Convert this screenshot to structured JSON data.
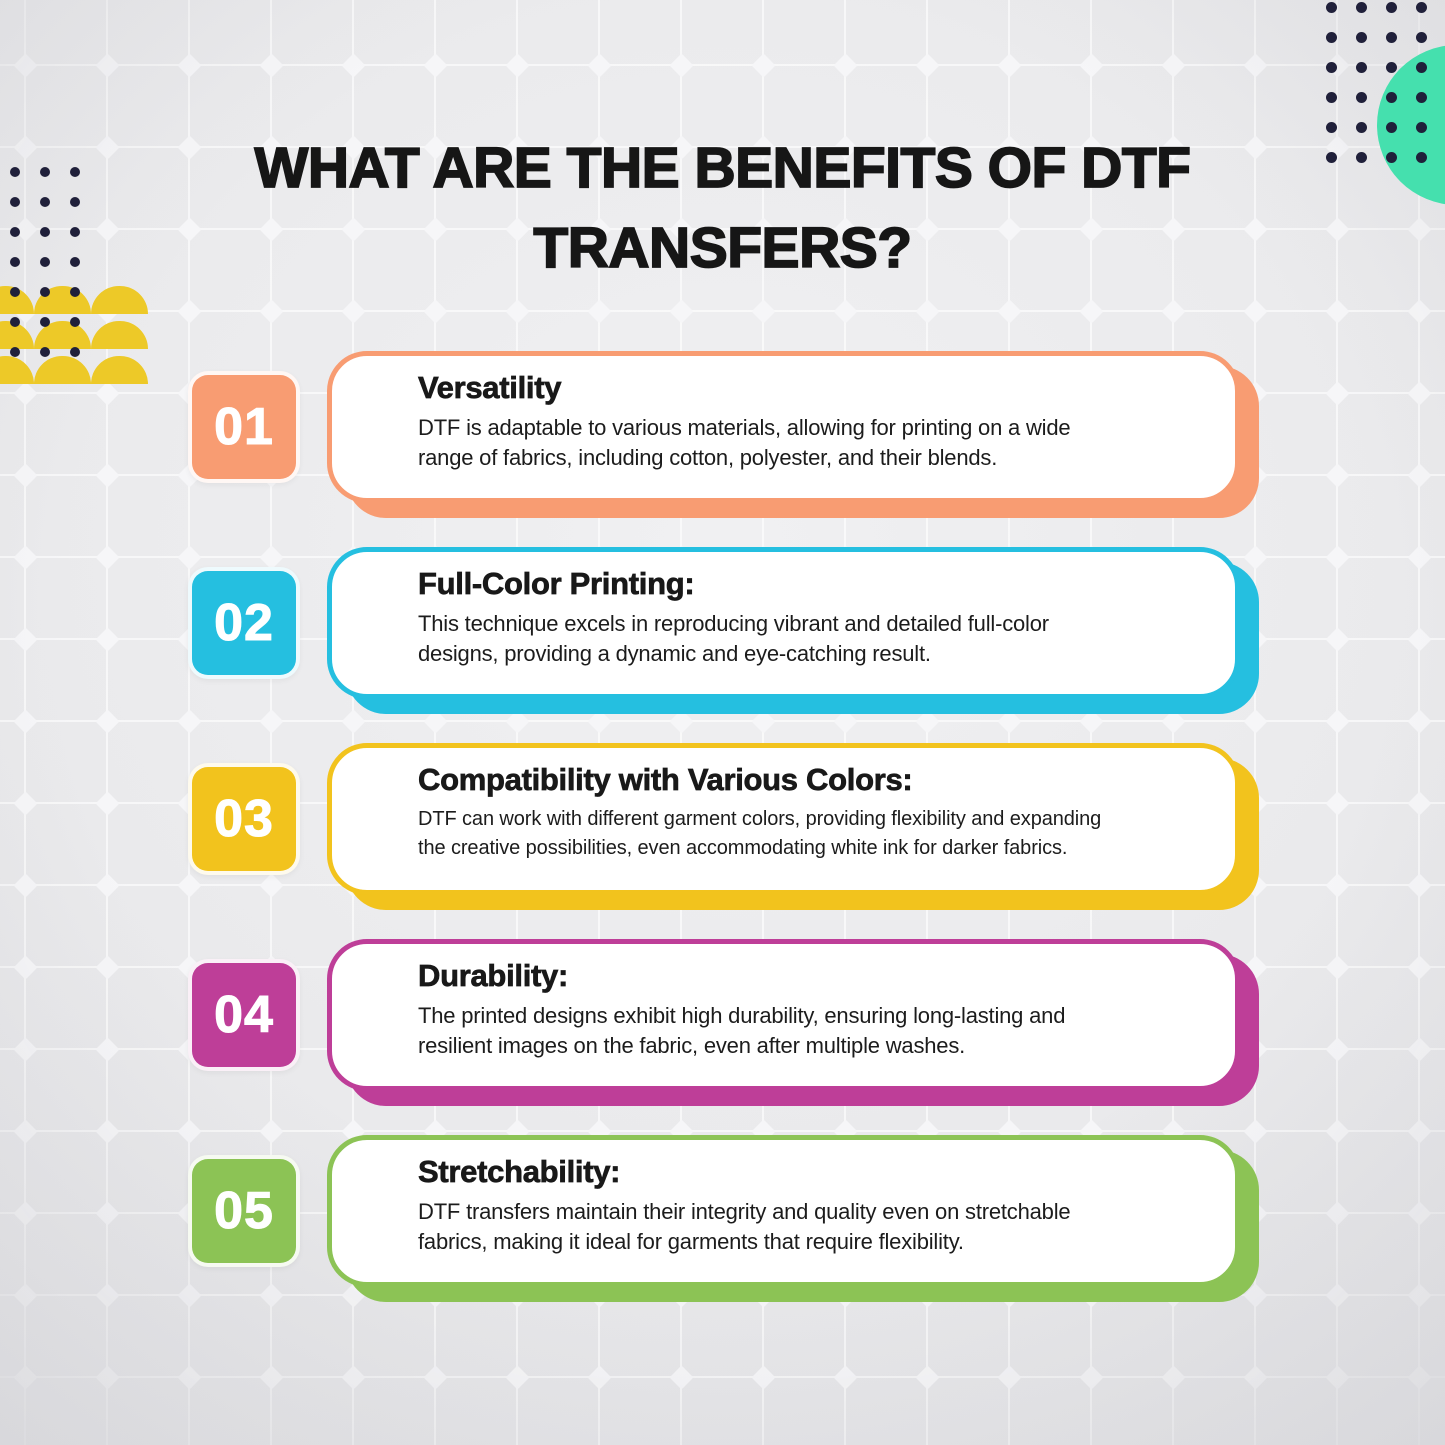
{
  "title": "WHAT ARE THE BENEFITS OF DTF\nTRANSFERS?",
  "cards": [
    {
      "number": "01",
      "heading": "Versatility",
      "body": "DTF is adaptable to various materials, allowing for printing on a wide\nrange of fabrics, including cotton, polyester, and their blends.",
      "color": "#F89C72"
    },
    {
      "number": "02",
      "heading": "Full-Color Printing:",
      "body": "This technique excels in reproducing vibrant and detailed full-color\ndesigns, providing a dynamic and eye-catching result.",
      "color": "#25BFE0"
    },
    {
      "number": "03",
      "heading": "Compatibility with Various Colors:",
      "body": "DTF can work with different garment colors, providing flexibility and expanding\nthe creative possibilities, even accommodating white ink for darker fabrics.",
      "color": "#F2C31D"
    },
    {
      "number": "04",
      "heading": "Durability:",
      "body": "The printed designs exhibit high durability, ensuring long-lasting and\nresilient images on the fabric, even after multiple washes.",
      "color": "#BE3E98"
    },
    {
      "number": "05",
      "heading": "Stretchability:",
      "body": "DTF transfers maintain their integrity and quality even on stretchable\nfabrics, making it ideal for garments that require flexibility.",
      "color": "#8CC355"
    }
  ],
  "decorations": {
    "teal_circle_color": "#45E0AE",
    "dot_color": "#20203A",
    "semicircle_color": "#EDC928",
    "background_color": "#EBEBED",
    "grid_line_color": "#FFFFFF",
    "title_color": "#161616"
  }
}
